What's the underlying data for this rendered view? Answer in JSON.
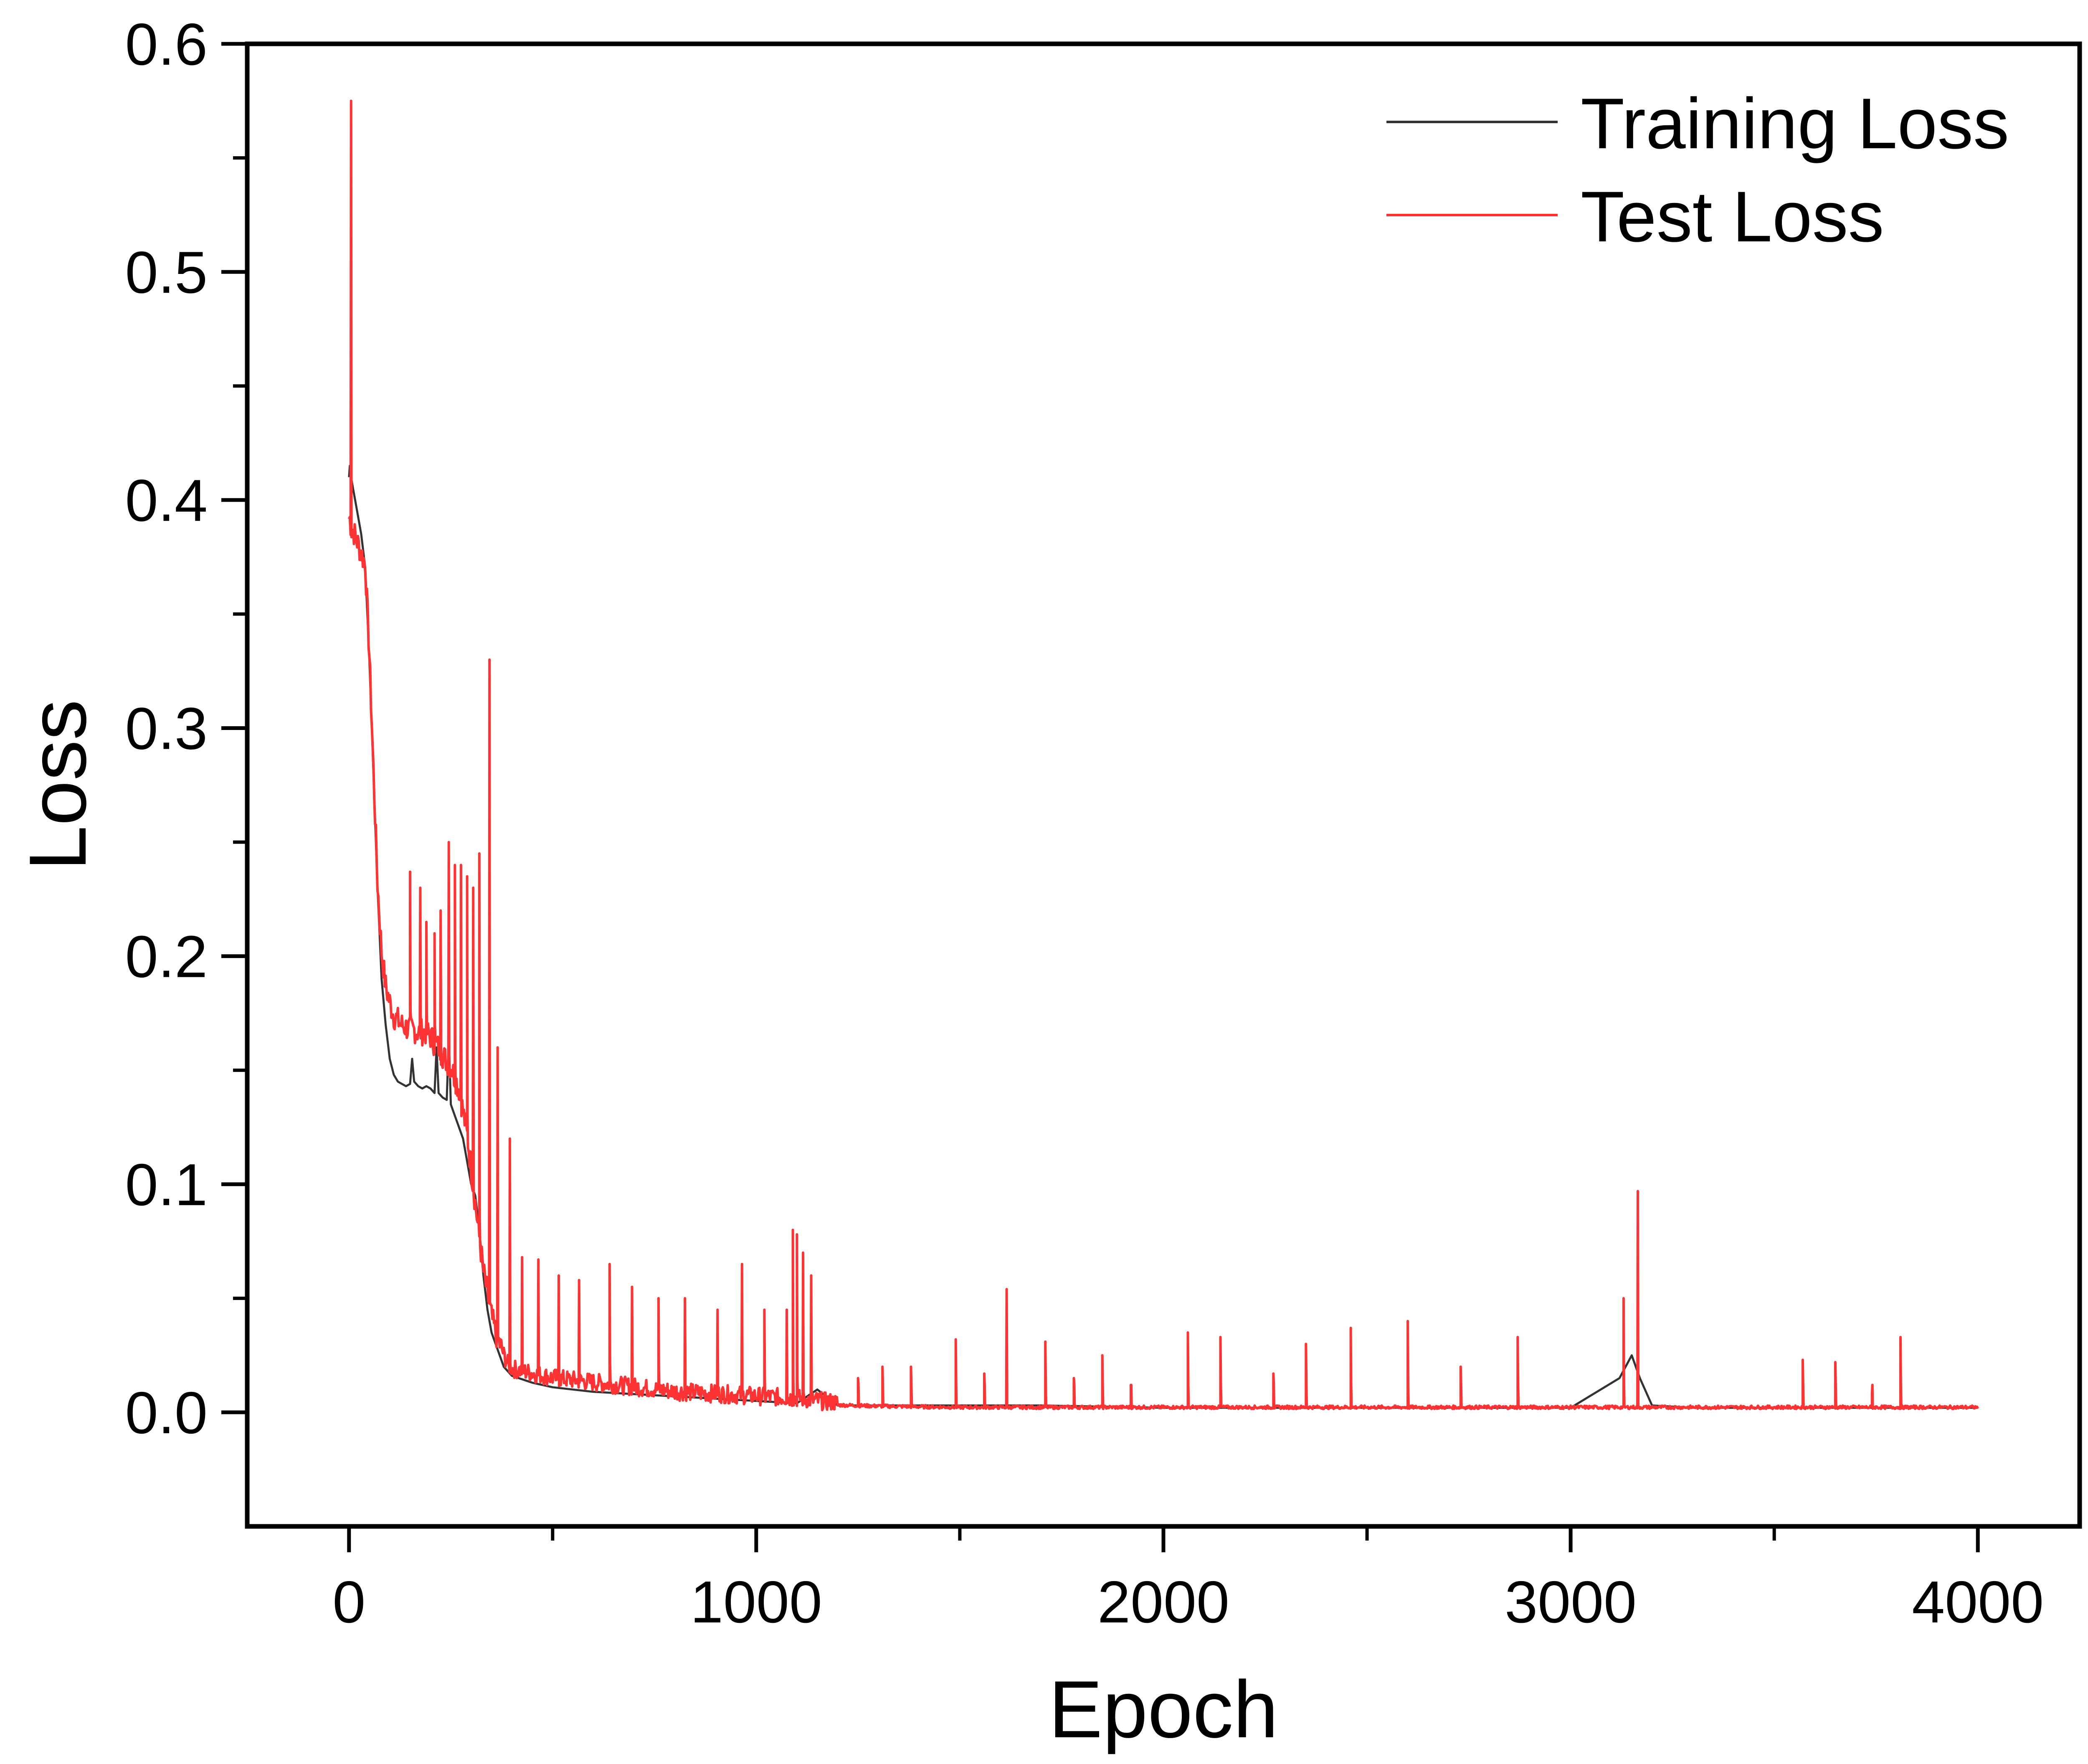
{
  "chart_data": {
    "type": "line",
    "xlabel": "Epoch",
    "ylabel": "Loss",
    "xlim": [
      -250,
      4250
    ],
    "ylim": [
      -0.05,
      0.6
    ],
    "x_ticks": [
      0,
      1000,
      2000,
      3000,
      4000
    ],
    "x_tick_labels": [
      "0",
      "1000",
      "2000",
      "3000",
      "4000"
    ],
    "y_ticks": [
      0.0,
      0.1,
      0.2,
      0.3,
      0.4,
      0.5,
      0.6
    ],
    "y_tick_labels": [
      "0.0",
      "0.1",
      "0.2",
      "0.3",
      "0.4",
      "0.5",
      "0.6"
    ],
    "x_minor_ticks": [
      500,
      1500,
      2500,
      3500
    ],
    "y_minor_ticks": [
      0.05,
      0.15,
      0.25,
      0.35,
      0.45,
      0.55
    ],
    "grid": false,
    "legend_position": "top-right",
    "series": [
      {
        "name": "Training Loss",
        "color": "#333333",
        "x": [
          0,
          2,
          5,
          10,
          20,
          30,
          40,
          50,
          60,
          70,
          80,
          90,
          100,
          110,
          120,
          130,
          140,
          150,
          155,
          160,
          170,
          180,
          190,
          200,
          210,
          215,
          220,
          230,
          240,
          245,
          250,
          260,
          270,
          280,
          290,
          300,
          310,
          320,
          330,
          340,
          350,
          360,
          370,
          380,
          390,
          400,
          450,
          500,
          600,
          700,
          800,
          900,
          1000,
          1100,
          1150,
          1200,
          1300,
          1500,
          1700,
          2000,
          2500,
          3000,
          3120,
          3150,
          3170,
          3200,
          3300,
          3500,
          3800,
          4000
        ],
        "y": [
          0.41,
          0.415,
          0.41,
          0.405,
          0.395,
          0.385,
          0.37,
          0.33,
          0.28,
          0.23,
          0.19,
          0.17,
          0.155,
          0.148,
          0.145,
          0.144,
          0.143,
          0.144,
          0.155,
          0.145,
          0.143,
          0.142,
          0.143,
          0.142,
          0.14,
          0.16,
          0.14,
          0.138,
          0.137,
          0.165,
          0.135,
          0.13,
          0.125,
          0.12,
          0.11,
          0.1,
          0.095,
          0.08,
          0.06,
          0.045,
          0.035,
          0.03,
          0.025,
          0.02,
          0.018,
          0.016,
          0.013,
          0.011,
          0.009,
          0.008,
          0.007,
          0.006,
          0.005,
          0.004,
          0.01,
          0.003,
          0.003,
          0.003,
          0.003,
          0.002,
          0.002,
          0.002,
          0.015,
          0.025,
          0.015,
          0.003,
          0.002,
          0.002,
          0.002,
          0.002
        ]
      },
      {
        "name": "Test Loss",
        "color": "#ff3333",
        "baseline_x": [
          0,
          3,
          5,
          10,
          20,
          30,
          40,
          50,
          60,
          70,
          80,
          90,
          100,
          110,
          120,
          130,
          140,
          150,
          160,
          170,
          180,
          190,
          200,
          210,
          220,
          230,
          240,
          250,
          260,
          270,
          280,
          290,
          300,
          310,
          320,
          330,
          340,
          350,
          360,
          370,
          380,
          390,
          400,
          450,
          500,
          600,
          700,
          800,
          900,
          1000,
          1100,
          1150,
          1200,
          1300,
          1500,
          2000,
          2500,
          3000,
          3500,
          4000
        ],
        "baseline_y": [
          0.39,
          0.39,
          0.385,
          0.385,
          0.38,
          0.375,
          0.37,
          0.33,
          0.28,
          0.23,
          0.2,
          0.185,
          0.178,
          0.172,
          0.17,
          0.168,
          0.167,
          0.166,
          0.166,
          0.165,
          0.165,
          0.165,
          0.163,
          0.16,
          0.158,
          0.155,
          0.152,
          0.15,
          0.145,
          0.14,
          0.13,
          0.12,
          0.105,
          0.09,
          0.075,
          0.06,
          0.05,
          0.04,
          0.033,
          0.028,
          0.024,
          0.02,
          0.018,
          0.016,
          0.014,
          0.012,
          0.01,
          0.008,
          0.007,
          0.006,
          0.005,
          0.004,
          0.003,
          0.0025,
          0.002,
          0.002,
          0.002,
          0.002,
          0.002,
          0.002
        ],
        "spikes_x": [
          5,
          150,
          175,
          190,
          210,
          225,
          245,
          260,
          275,
          290,
          305,
          320,
          345,
          365,
          395,
          425,
          465,
          515,
          565,
          640,
          695,
          760,
          825,
          905,
          965,
          1020,
          1075,
          1090,
          1100,
          1115,
          1135,
          1250,
          1310,
          1380,
          1490,
          1560,
          1615,
          1710,
          1780,
          1850,
          1920,
          2060,
          2140,
          2270,
          2350,
          2460,
          2600,
          2730,
          2870,
          3130,
          3165,
          3570,
          3650,
          3740,
          3810
        ],
        "spikes_y": [
          0.575,
          0.237,
          0.23,
          0.215,
          0.21,
          0.22,
          0.25,
          0.24,
          0.24,
          0.235,
          0.23,
          0.245,
          0.33,
          0.16,
          0.12,
          0.068,
          0.067,
          0.06,
          0.058,
          0.065,
          0.055,
          0.05,
          0.05,
          0.045,
          0.065,
          0.045,
          0.045,
          0.08,
          0.078,
          0.07,
          0.06,
          0.015,
          0.02,
          0.02,
          0.032,
          0.017,
          0.054,
          0.031,
          0.015,
          0.025,
          0.012,
          0.035,
          0.033,
          0.017,
          0.03,
          0.037,
          0.04,
          0.02,
          0.033,
          0.05,
          0.097,
          0.023,
          0.022,
          0.008,
          0.033
        ]
      }
    ]
  }
}
